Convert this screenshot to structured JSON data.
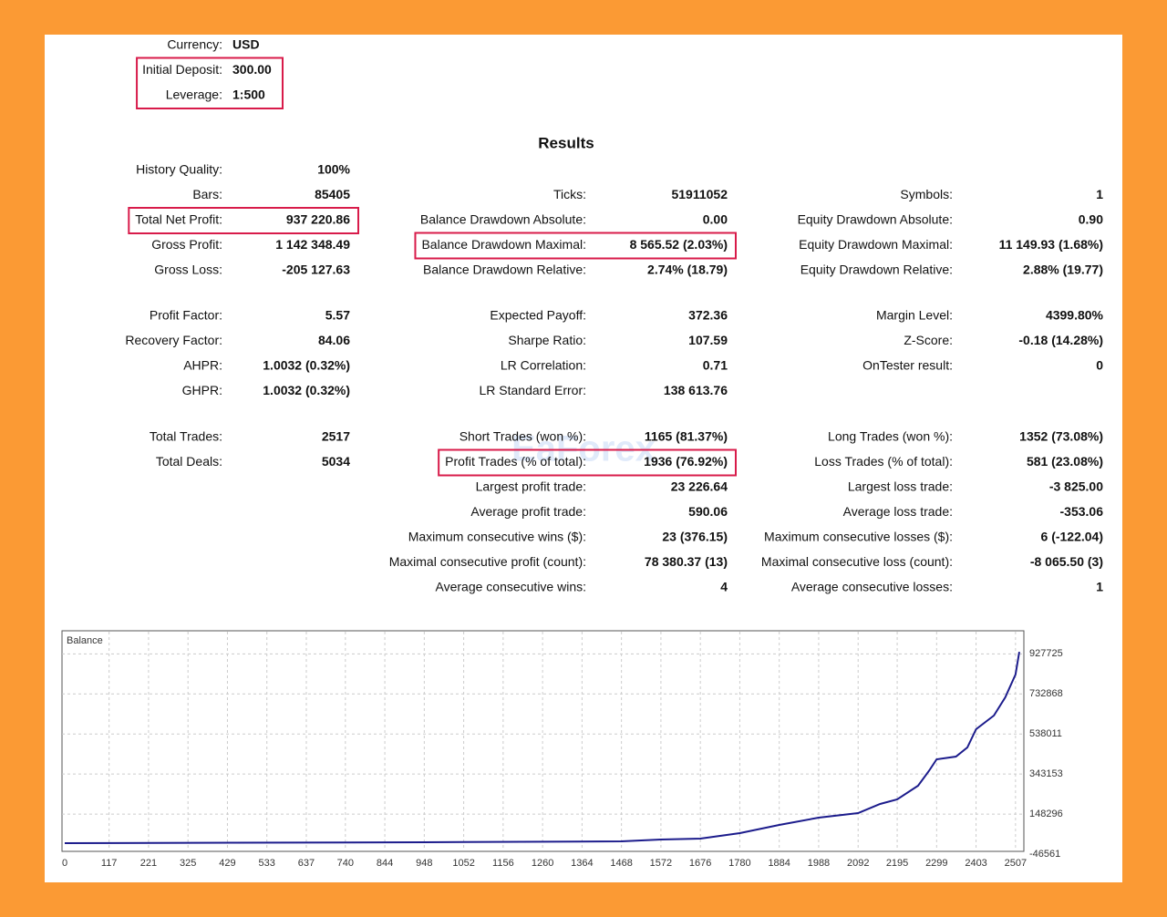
{
  "settings": {
    "rows": [
      {
        "label": "Currency:",
        "value": "USD"
      },
      {
        "label": "Initial Deposit:",
        "value": "300.00",
        "highlight": true
      },
      {
        "label": "Leverage:",
        "value": "1:500",
        "highlight": true
      }
    ]
  },
  "results": {
    "title": "Results",
    "sections": [
      {
        "rows": [
          [
            {
              "label": "History Quality:",
              "value": "100%"
            },
            null,
            null
          ],
          [
            {
              "label": "Bars:",
              "value": "85405"
            },
            {
              "label": "Ticks:",
              "value": "51911052"
            },
            {
              "label": "Symbols:",
              "value": "1"
            }
          ],
          [
            {
              "label": "Total Net Profit:",
              "value": "937 220.86",
              "highlight": true
            },
            {
              "label": "Balance Drawdown Absolute:",
              "value": "0.00"
            },
            {
              "label": "Equity Drawdown Absolute:",
              "value": "0.90"
            }
          ],
          [
            {
              "label": "Gross Profit:",
              "value": "1 142 348.49"
            },
            {
              "label": "Balance Drawdown Maximal:",
              "value": "8 565.52 (2.03%)",
              "highlight": true
            },
            {
              "label": "Equity Drawdown Maximal:",
              "value": "11 149.93 (1.68%)"
            }
          ],
          [
            {
              "label": "Gross Loss:",
              "value": "-205 127.63"
            },
            {
              "label": "Balance Drawdown Relative:",
              "value": "2.74% (18.79)"
            },
            {
              "label": "Equity Drawdown Relative:",
              "value": "2.88% (19.77)"
            }
          ]
        ]
      },
      {
        "rows": [
          [
            {
              "label": "Profit Factor:",
              "value": "5.57"
            },
            {
              "label": "Expected Payoff:",
              "value": "372.36"
            },
            {
              "label": "Margin Level:",
              "value": "4399.80%"
            }
          ],
          [
            {
              "label": "Recovery Factor:",
              "value": "84.06"
            },
            {
              "label": "Sharpe Ratio:",
              "value": "107.59"
            },
            {
              "label": "Z-Score:",
              "value": "-0.18 (14.28%)"
            }
          ],
          [
            {
              "label": "AHPR:",
              "value": "1.0032 (0.32%)"
            },
            {
              "label": "LR Correlation:",
              "value": "0.71"
            },
            {
              "label": "OnTester result:",
              "value": "0"
            }
          ],
          [
            {
              "label": "GHPR:",
              "value": "1.0032 (0.32%)"
            },
            {
              "label": "LR Standard Error:",
              "value": "138 613.76"
            },
            null
          ]
        ]
      },
      {
        "rows": [
          [
            {
              "label": "Total Trades:",
              "value": "2517"
            },
            {
              "label": "Short Trades (won %):",
              "value": "1165 (81.37%)"
            },
            {
              "label": "Long Trades (won %):",
              "value": "1352 (73.08%)"
            }
          ],
          [
            {
              "label": "Total Deals:",
              "value": "5034"
            },
            {
              "label": "Profit Trades (% of total):",
              "value": "1936 (76.92%)",
              "highlight": true
            },
            {
              "label": "Loss Trades (% of total):",
              "value": "581 (23.08%)"
            }
          ],
          [
            null,
            {
              "label": "Largest profit trade:",
              "value": "23 226.64"
            },
            {
              "label": "Largest loss trade:",
              "value": "-3 825.00"
            }
          ],
          [
            null,
            {
              "label": "Average profit trade:",
              "value": "590.06"
            },
            {
              "label": "Average loss trade:",
              "value": "-353.06"
            }
          ],
          [
            null,
            {
              "label": "Maximum consecutive wins ($):",
              "value": "23 (376.15)"
            },
            {
              "label": "Maximum consecutive losses ($):",
              "value": "6 (-122.04)"
            }
          ],
          [
            null,
            {
              "label": "Maximal consecutive profit (count):",
              "value": "78 380.37 (13)"
            },
            {
              "label": "Maximal consecutive loss (count):",
              "value": "-8 065.50 (3)"
            }
          ],
          [
            null,
            {
              "label": "Average consecutive wins:",
              "value": "4"
            },
            {
              "label": "Average consecutive losses:",
              "value": "1"
            }
          ]
        ]
      }
    ]
  },
  "watermark": "EaForex",
  "chart_data": {
    "type": "line",
    "x": [
      0,
      948,
      1468,
      1572,
      1676,
      1780,
      1884,
      1988,
      2092,
      2150,
      2195,
      2250,
      2280,
      2299,
      2350,
      2380,
      2403,
      2450,
      2480,
      2507,
      2517
    ],
    "series": [
      {
        "name": "Balance",
        "color": "#1c1c8c",
        "values": [
          6700,
          11100,
          15500,
          24400,
          28800,
          55400,
          95400,
          130800,
          153000,
          197400,
          219500,
          286000,
          361500,
          414700,
          428000,
          472300,
          561000,
          627600,
          716300,
          827100,
          937521
        ]
      }
    ],
    "xlim": [
      0,
      2517
    ],
    "ylim": [
      -46561,
      1040000
    ],
    "xticks": [
      0,
      117,
      221,
      325,
      429,
      533,
      637,
      740,
      844,
      948,
      1052,
      1156,
      1260,
      1364,
      1468,
      1572,
      1676,
      1780,
      1884,
      1988,
      2092,
      2195,
      2299,
      2403,
      2507
    ],
    "yticks": [
      -46561,
      148296,
      343153,
      538011,
      732868,
      927725
    ],
    "grid": true
  }
}
